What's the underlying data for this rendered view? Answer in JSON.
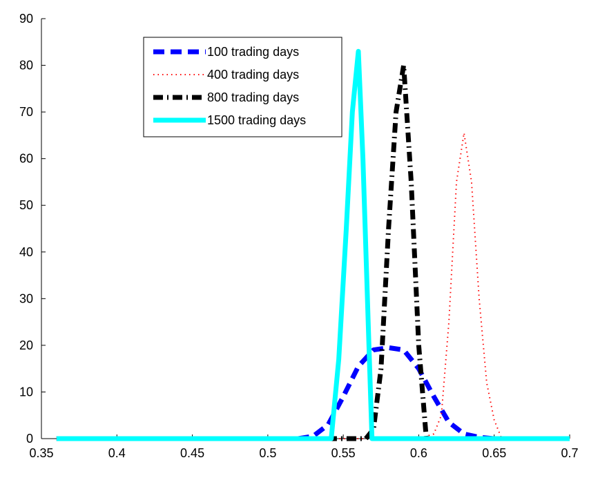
{
  "chart_data": {
    "type": "line",
    "title": "",
    "xlabel": "",
    "ylabel": "",
    "xlim": [
      0.36,
      0.7
    ],
    "ylim": [
      0,
      90
    ],
    "xticks": [
      0.35,
      0.4,
      0.45,
      0.5,
      0.55,
      0.6,
      0.65,
      0.7
    ],
    "xtick_labels": [
      "0.35",
      "0.4",
      "0.45",
      "0.5",
      "0.55",
      "0.6",
      "0.65",
      "0.7"
    ],
    "yticks": [
      0,
      10,
      20,
      30,
      40,
      50,
      60,
      70,
      80,
      90
    ],
    "ytick_labels": [
      "0",
      "10",
      "20",
      "30",
      "40",
      "50",
      "60",
      "70",
      "80",
      "90"
    ],
    "grid": false,
    "legend_position": "top-left",
    "series": [
      {
        "name": "100 trading days",
        "color": "#0000ff",
        "style": "dashed",
        "x": [
          0.36,
          0.52,
          0.53,
          0.54,
          0.55,
          0.56,
          0.57,
          0.58,
          0.59,
          0.6,
          0.61,
          0.62,
          0.63,
          0.64,
          0.65,
          0.7
        ],
        "y": [
          0,
          0,
          0.5,
          3,
          9,
          15.5,
          19,
          19.5,
          19,
          15,
          9,
          3.5,
          1,
          0.3,
          0,
          0
        ]
      },
      {
        "name": "400 trading days",
        "color": "#ff0000",
        "style": "dotted",
        "x": [
          0.36,
          0.6,
          0.61,
          0.615,
          0.62,
          0.625,
          0.63,
          0.635,
          0.64,
          0.645,
          0.65,
          0.655,
          0.7
        ],
        "y": [
          0,
          0,
          1,
          5,
          25,
          55,
          65.5,
          55,
          30,
          12,
          4,
          0,
          0
        ]
      },
      {
        "name": "800 trading days",
        "color": "#000000",
        "style": "dashdot",
        "x": [
          0.36,
          0.565,
          0.57,
          0.575,
          0.58,
          0.585,
          0.59,
          0.595,
          0.6,
          0.605,
          0.7
        ],
        "y": [
          0,
          0,
          2,
          15,
          45,
          70,
          80,
          55,
          20,
          0,
          0
        ]
      },
      {
        "name": "1500 trading days",
        "color": "#00ffff",
        "style": "solid",
        "x": [
          0.36,
          0.542,
          0.547,
          0.552,
          0.556,
          0.56,
          0.563,
          0.567,
          0.569,
          0.7
        ],
        "y": [
          0,
          0,
          17,
          45,
          70,
          83,
          60,
          20,
          0,
          0
        ]
      }
    ]
  }
}
